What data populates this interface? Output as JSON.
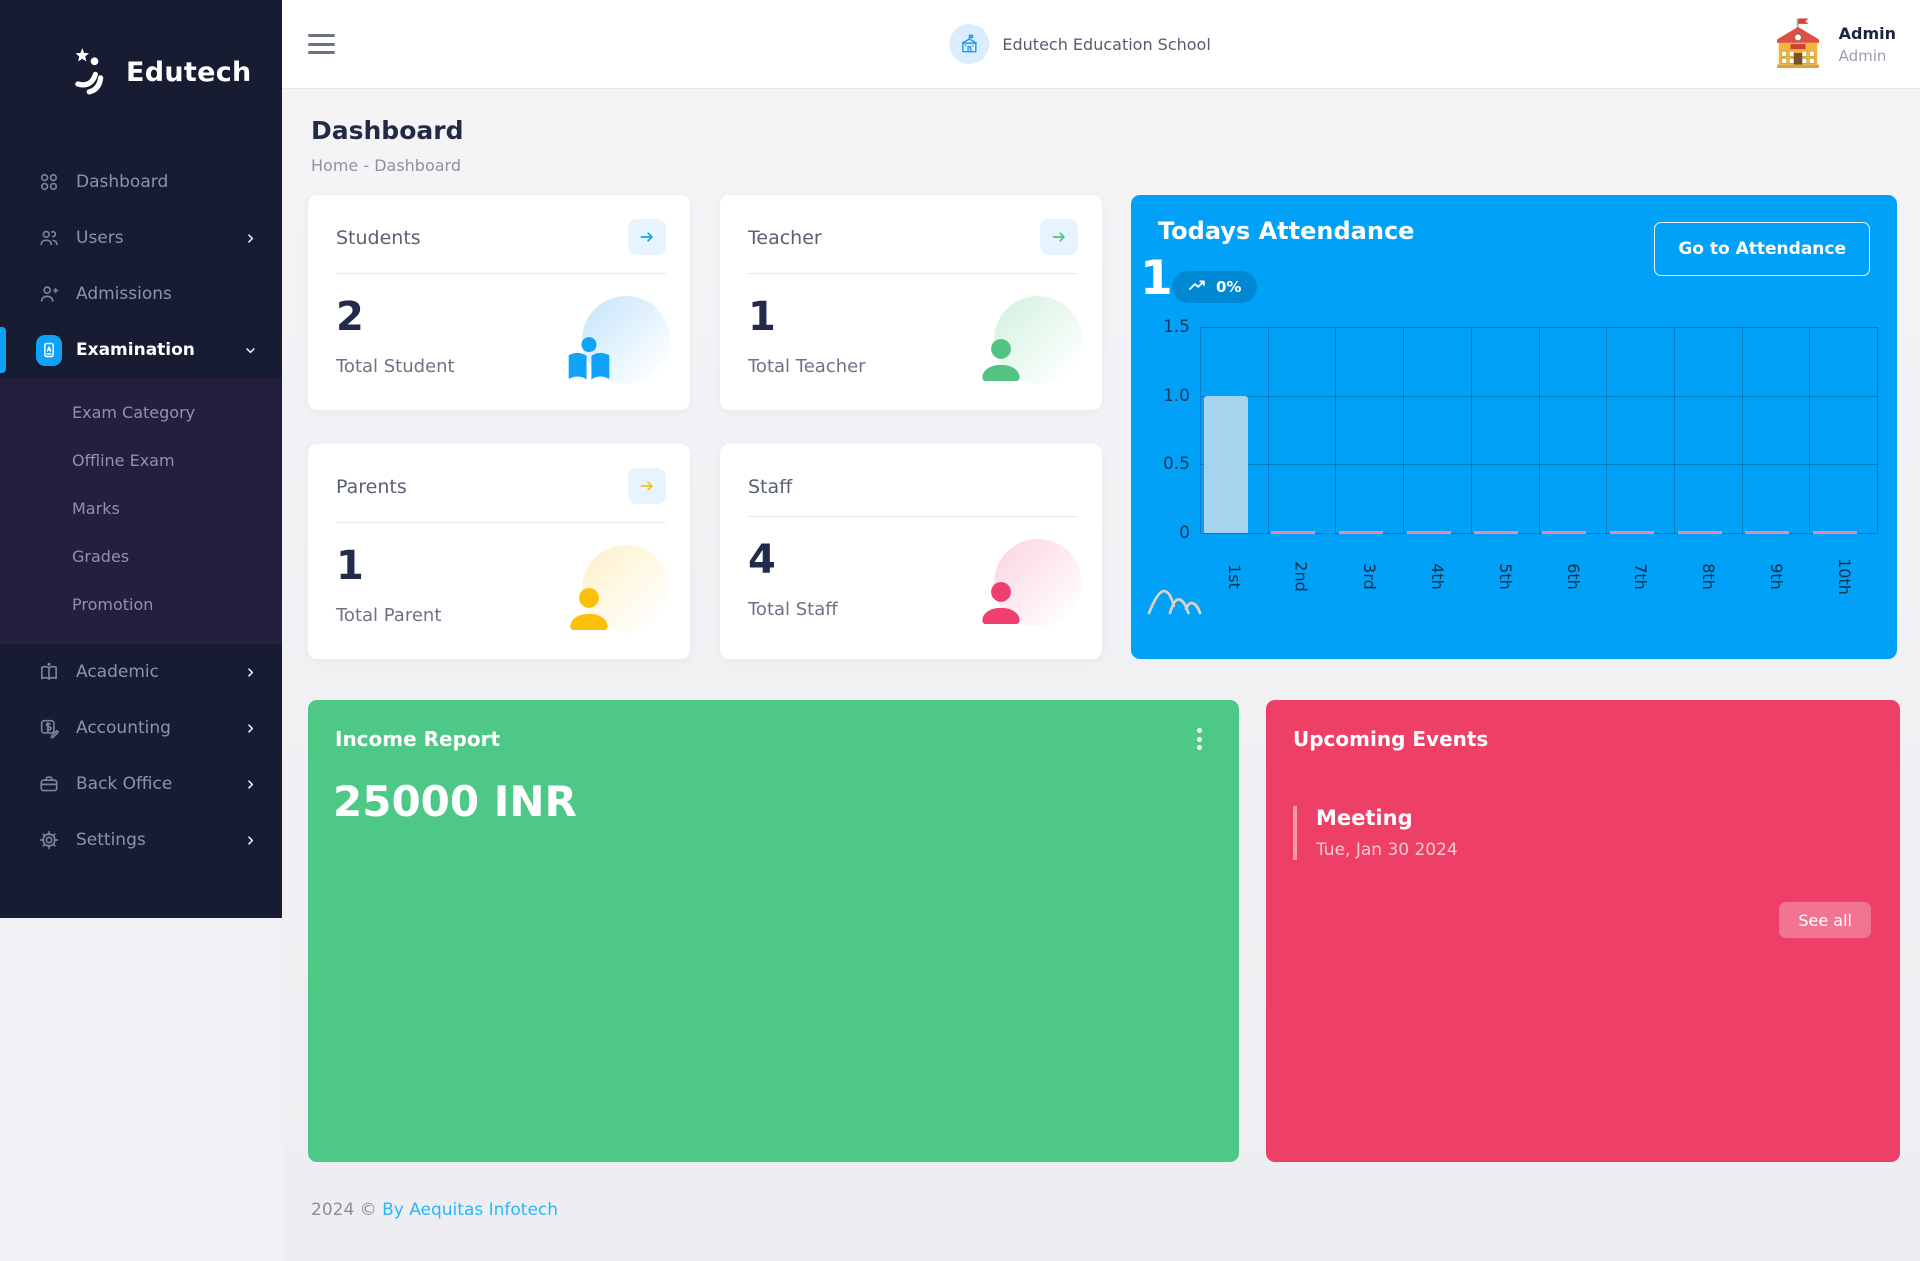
{
  "colors": {
    "sidebar_bg": "#171c33",
    "submenu_bg": "#241e3f",
    "accent_blue": "#0da2f7",
    "attendance_bg": "#01a1f7",
    "income_bg": "#4dc886",
    "events_bg": "#ee3f67",
    "bar_fill": "#a6d4ee",
    "zero_marker": "#ef87b3",
    "footer_link": "#2ab6f6"
  },
  "sidebar": {
    "brand": "Edutech",
    "items": [
      {
        "label": "Dashboard",
        "icon": "grid-icon",
        "chevron": null,
        "active": false
      },
      {
        "label": "Users",
        "icon": "users-icon",
        "chevron": "right",
        "active": false
      },
      {
        "label": "Admissions",
        "icon": "person-add-icon",
        "chevron": null,
        "active": false
      },
      {
        "label": "Examination",
        "icon": "exam-badge-icon",
        "chevron": "down",
        "active": true,
        "children": [
          "Exam Category",
          "Offline Exam",
          "Marks",
          "Grades",
          "Promotion"
        ]
      },
      {
        "label": "Academic",
        "icon": "academic-icon",
        "chevron": "right",
        "active": false
      },
      {
        "label": "Accounting",
        "icon": "accounting-icon",
        "chevron": "right",
        "active": false
      },
      {
        "label": "Back Office",
        "icon": "briefcase-icon",
        "chevron": "right",
        "active": false
      },
      {
        "label": "Settings",
        "icon": "gear-icon",
        "chevron": "right",
        "active": false
      }
    ]
  },
  "topbar": {
    "school_name": "Edutech Education School",
    "profile_name": "Admin",
    "profile_role": "Admin"
  },
  "page": {
    "title": "Dashboard",
    "breadcrumb": "Home - Dashboard"
  },
  "stats": [
    {
      "title": "Students",
      "value": "2",
      "label": "Total Student",
      "accent": "#12a3f8",
      "circle": "#c9e7fb",
      "glyph": "book-reader-icon",
      "has_arrow": true
    },
    {
      "title": "Teacher",
      "value": "1",
      "label": "Total Teacher",
      "accent": "#51c382",
      "circle": "#d6f3e2",
      "glyph": "person-icon",
      "has_arrow": true
    },
    {
      "title": "Parents",
      "value": "1",
      "label": "Total Parent",
      "accent": "#fcc00b",
      "circle": "#fdf2cf",
      "glyph": "person-icon",
      "has_arrow": true
    },
    {
      "title": "Staff",
      "value": "4",
      "label": "Total Staff",
      "accent": "#ef3f6e",
      "circle": "#fcd7e3",
      "glyph": "person-icon",
      "has_arrow": false
    }
  ],
  "attendance": {
    "title": "Todays Attendance",
    "button_label": "Go to Attendance",
    "big_value": "1",
    "trend_badge": "0%"
  },
  "chart_data": {
    "type": "bar",
    "title": "Todays Attendance",
    "categories": [
      "1st",
      "2nd",
      "3rd",
      "4th",
      "5th",
      "6th",
      "7th",
      "8th",
      "9th",
      "10th"
    ],
    "values": [
      1,
      0,
      0,
      0,
      0,
      0,
      0,
      0,
      0,
      0
    ],
    "xlabel": "",
    "ylabel": "",
    "ylim": [
      0,
      1.5
    ],
    "yticks": [
      0,
      0.5,
      1.0,
      1.5
    ],
    "grid": true,
    "legend": "none",
    "bar_color": "#a6d4ee",
    "zero_marker_color": "#ef87b3",
    "x_label_rotation": 90
  },
  "income": {
    "title": "Income Report",
    "amount": "25000 INR"
  },
  "events": {
    "title": "Upcoming Events",
    "event_title": "Meeting",
    "event_date": "Tue, Jan 30 2024",
    "see_all_label": "See all"
  },
  "footer": {
    "text": "2024 © ",
    "link": "By Aequitas Infotech"
  }
}
